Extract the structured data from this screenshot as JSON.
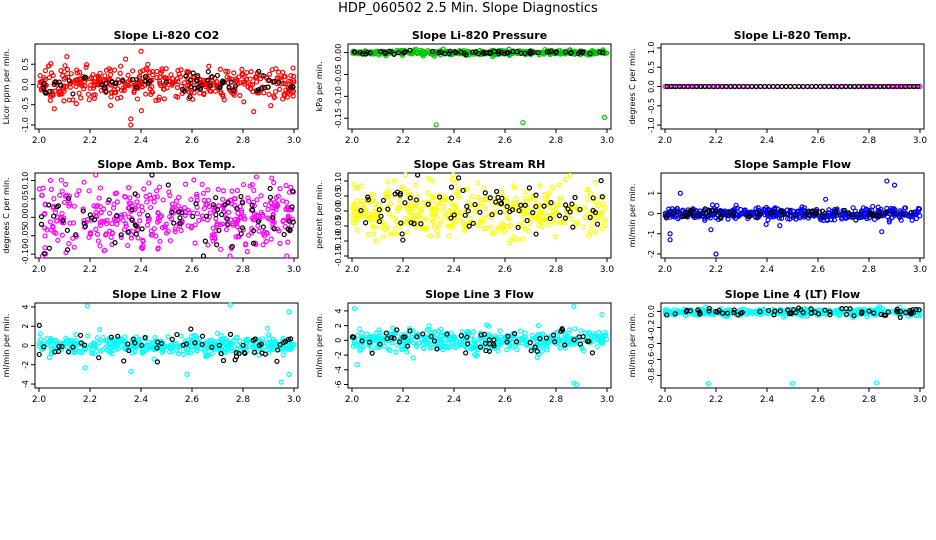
{
  "title": "HDP_060502  2.5 Min. Slope Diagnostics",
  "chart_data": [
    {
      "type": "scatter",
      "title": "Slope Li-820 CO2",
      "ylabel": "Licor ppm per min.",
      "xlim": [
        2.0,
        3.0
      ],
      "ylim": [
        -1.05,
        0.95
      ],
      "xticks": [
        "2.0",
        "2.2",
        "2.4",
        "2.6",
        "2.8",
        "3.0"
      ],
      "yticks": [
        -1,
        -0.5,
        0,
        0.5
      ],
      "ytick_labels": [
        "-1.0",
        "-0.5",
        "0.0",
        "0.5"
      ],
      "color": "#ff0000",
      "second_color": "#000000",
      "n_main": 420,
      "n_second": 70,
      "main_sd": 0.2,
      "second_sd": 0.12,
      "center": 0.03,
      "outliers": [
        [
          2.36,
          -0.85
        ],
        [
          2.36,
          -1.0
        ],
        [
          2.4,
          0.82
        ],
        [
          2.06,
          -0.6
        ]
      ]
    },
    {
      "type": "scatter",
      "title": "Slope Li-820 Pressure",
      "ylabel": "kPa per min.",
      "xlim": [
        2.0,
        3.0
      ],
      "ylim": [
        -0.17,
        0.015
      ],
      "xticks": [
        "2.0",
        "2.2",
        "2.4",
        "2.6",
        "2.8",
        "3.0"
      ],
      "yticks": [
        -0.15,
        -0.1,
        -0.05,
        0
      ],
      "ytick_labels": [
        "-0.15",
        "-0.10",
        "-0.05",
        "0.00"
      ],
      "color": "#00c800",
      "second_color": "#000000",
      "n_main": 380,
      "n_second": 70,
      "main_sd": 0.003,
      "second_sd": 0.002,
      "center": 0.0,
      "outliers": [
        [
          2.33,
          -0.165
        ],
        [
          2.67,
          -0.16
        ],
        [
          2.99,
          -0.148
        ]
      ]
    },
    {
      "type": "scatter",
      "title": "Slope Li-820 Temp.",
      "ylabel": "degrees C per min.",
      "xlim": [
        2.0,
        3.0
      ],
      "ylim": [
        -1.05,
        1.05
      ],
      "xticks": [
        "2.0",
        "2.2",
        "2.4",
        "2.6",
        "2.8",
        "3.0"
      ],
      "yticks": [
        -1,
        -0.5,
        0,
        0.5,
        1
      ],
      "ytick_labels": [
        "-1.0",
        "-0.5",
        "0.0",
        "0.5",
        "1.0"
      ],
      "color": "#ff00ff",
      "second_color": "#000000",
      "n_main": 60,
      "n_second": 60,
      "main_sd": 0,
      "second_sd": 0,
      "center": 0.0,
      "regular": true,
      "outliers": []
    },
    {
      "type": "scatter",
      "title": "Slope Amb. Box Temp.",
      "ylabel": "degrees C per min.",
      "xlim": [
        2.0,
        3.0
      ],
      "ylim": [
        -0.105,
        0.115
      ],
      "xticks": [
        "2.0",
        "2.2",
        "2.4",
        "2.6",
        "2.8",
        "3.0"
      ],
      "yticks": [
        -0.1,
        -0.05,
        0,
        0.05,
        0.1
      ],
      "ytick_labels": [
        "-0.10",
        "-0.05",
        "0.00",
        "0.05",
        "0.10"
      ],
      "color": "#ff00ff",
      "second_color": "#000000",
      "n_main": 420,
      "n_second": 80,
      "main_sd": 0.045,
      "second_sd": 0.04,
      "center": 0.0,
      "outliers": []
    },
    {
      "type": "scatter",
      "title": "Slope Gas Stream RH",
      "ylabel": "percent per min.",
      "xlim": [
        2.0,
        3.0
      ],
      "ylim": [
        -0.15,
        0.12
      ],
      "xticks": [
        "2.0",
        "2.2",
        "2.4",
        "2.6",
        "2.8",
        "3.0"
      ],
      "yticks": [
        -0.15,
        -0.1,
        -0.05,
        0,
        0.05,
        0.1
      ],
      "ytick_labels": [
        "-0.15",
        "-0.10",
        "-0.05",
        "0.00",
        "0.05",
        "0.10"
      ],
      "color": "#ffff00",
      "second_color": "#000000",
      "n_main": 420,
      "n_second": 80,
      "main_sd": 0.045,
      "second_sd": 0.045,
      "center": 0.0,
      "outliers": []
    },
    {
      "type": "scatter",
      "title": "Slope Sample Flow",
      "ylabel": "ml/min per min.",
      "xlim": [
        2.0,
        3.0
      ],
      "ylim": [
        -2.1,
        1.9
      ],
      "xticks": [
        "2.0",
        "2.2",
        "2.4",
        "2.6",
        "2.8",
        "3.0"
      ],
      "yticks": [
        -2,
        -1,
        0,
        1
      ],
      "ytick_labels": [
        "-2",
        "-1",
        "0",
        "1"
      ],
      "color": "#0000ff",
      "second_color": "#000000",
      "n_main": 420,
      "n_second": 70,
      "main_sd": 0.15,
      "second_sd": 0.12,
      "center": 0.0,
      "outliers": [
        [
          2.02,
          -1.3
        ],
        [
          2.06,
          1.0
        ],
        [
          2.2,
          -2.0
        ],
        [
          2.45,
          -0.6
        ],
        [
          2.63,
          0.7
        ],
        [
          2.87,
          1.6
        ],
        [
          2.9,
          1.4
        ],
        [
          2.85,
          -0.9
        ],
        [
          2.02,
          -1.0
        ],
        [
          2.18,
          -0.8
        ]
      ]
    },
    {
      "type": "scatter",
      "title": "Slope Line 2 Flow",
      "ylabel": "ml/min per min.",
      "xlim": [
        2.0,
        3.0
      ],
      "ylim": [
        -4.2,
        4.2
      ],
      "xticks": [
        "2.0",
        "2.2",
        "2.4",
        "2.6",
        "2.8",
        "3.0"
      ],
      "yticks": [
        -4,
        -2,
        0,
        2,
        4
      ],
      "ytick_labels": [
        "-4",
        "-2",
        "0",
        "2",
        "4"
      ],
      "color": "#00ffff",
      "second_color": "#000000",
      "n_main": 420,
      "n_second": 60,
      "main_sd": 0.45,
      "second_sd": 0.7,
      "center": 0.0,
      "outliers": [
        [
          2.19,
          4.1
        ],
        [
          2.75,
          4.2
        ],
        [
          2.98,
          3.5
        ],
        [
          2.95,
          -3.8
        ],
        [
          2.98,
          -3.0
        ],
        [
          2.58,
          -3.0
        ],
        [
          2.36,
          -2.7
        ],
        [
          2.18,
          -2.3
        ]
      ]
    },
    {
      "type": "scatter",
      "title": "Slope Line 3 Flow",
      "ylabel": "ml/min per min.",
      "xlim": [
        2.0,
        3.0
      ],
      "ylim": [
        -6.2,
        4.8
      ],
      "xticks": [
        "2.0",
        "2.2",
        "2.4",
        "2.6",
        "2.8",
        "3.0"
      ],
      "yticks": [
        -6,
        -4,
        -2,
        0,
        2,
        4
      ],
      "ytick_labels": [
        "-6",
        "-4",
        "-2",
        "0",
        "2",
        "4"
      ],
      "color": "#00ffff",
      "second_color": "#000000",
      "n_main": 420,
      "n_second": 60,
      "main_sd": 0.7,
      "second_sd": 0.9,
      "center": 0.0,
      "outliers": [
        [
          2.01,
          4.3
        ],
        [
          2.87,
          4.6
        ],
        [
          2.87,
          -5.8
        ],
        [
          2.88,
          -6.0
        ],
        [
          2.02,
          -3.3
        ],
        [
          2.98,
          3.5
        ],
        [
          2.24,
          -2.4
        ]
      ]
    },
    {
      "type": "scatter",
      "title": "Slope Line 4 (LT) Flow",
      "ylabel": "ml/min per min.",
      "xlim": [
        2.0,
        3.0
      ],
      "ylim": [
        -0.93,
        0.08
      ],
      "xticks": [
        "2.0",
        "2.2",
        "2.4",
        "2.6",
        "2.8",
        "3.0"
      ],
      "yticks": [
        -0.8,
        -0.6,
        -0.4,
        -0.2,
        0
      ],
      "ytick_labels": [
        "-0.8",
        "-0.6",
        "-0.4",
        "-0.2",
        "0.0"
      ],
      "color": "#00ffff",
      "second_color": "#000000",
      "n_main": 400,
      "n_second": 70,
      "main_sd": 0.022,
      "second_sd": 0.025,
      "center": -0.01,
      "outliers": [
        [
          2.17,
          -0.9
        ],
        [
          2.5,
          -0.9
        ],
        [
          2.83,
          -0.89
        ]
      ]
    }
  ]
}
